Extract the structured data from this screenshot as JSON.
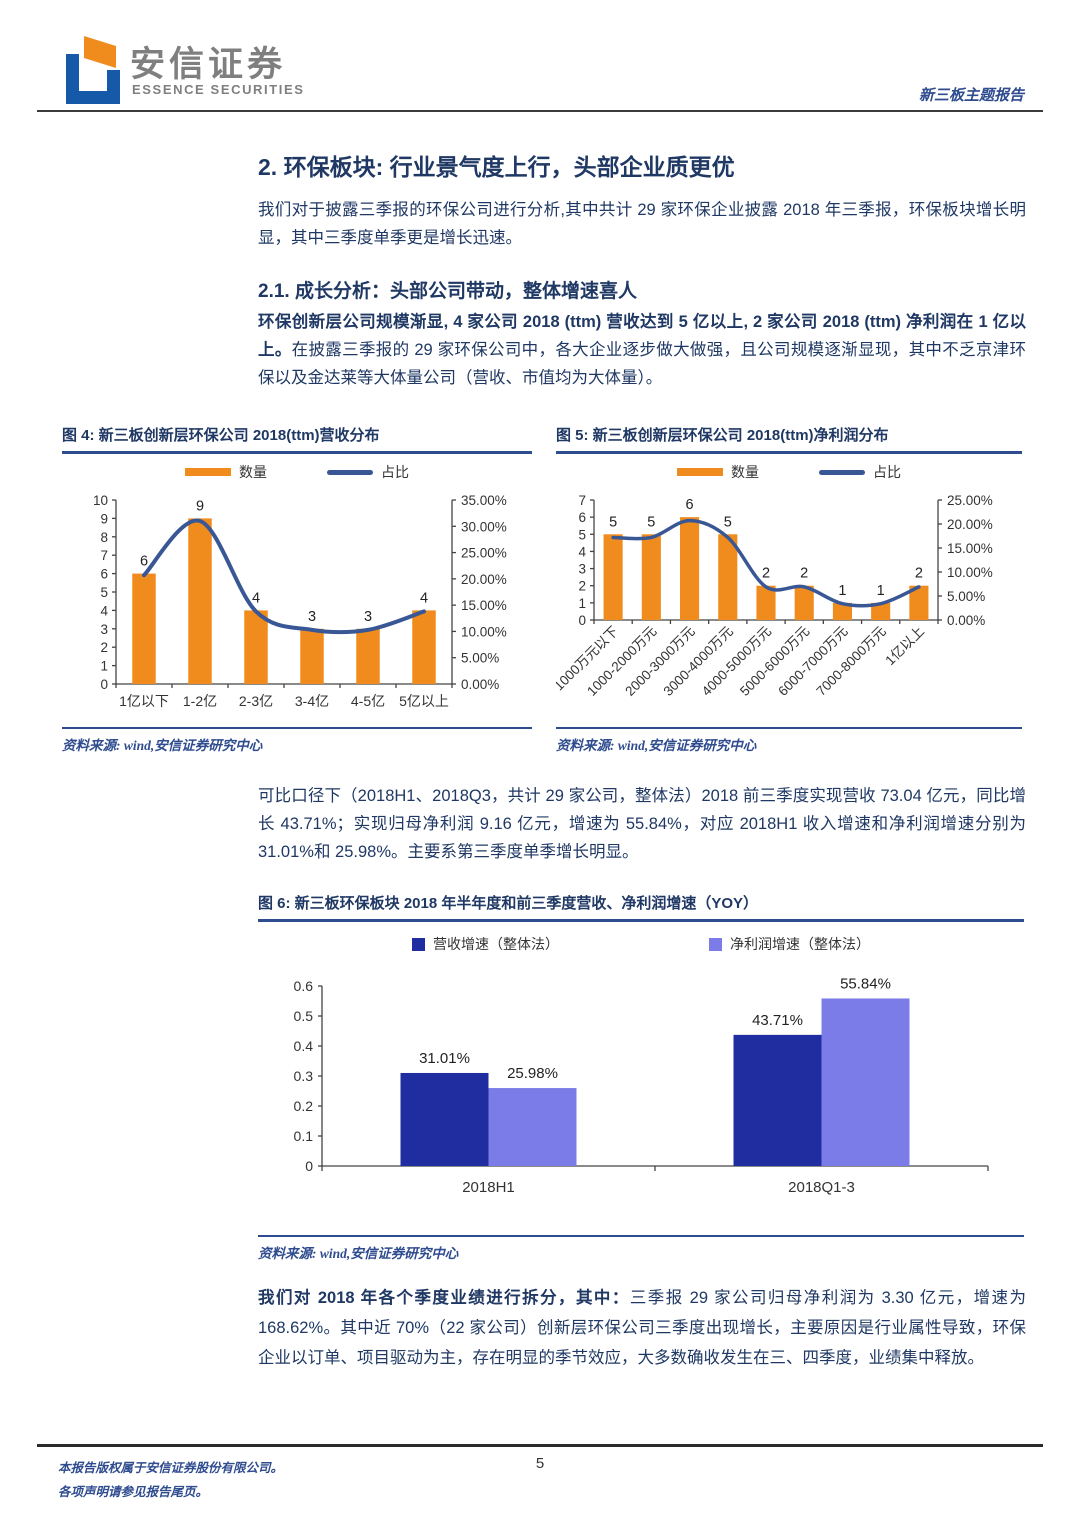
{
  "header": {
    "brand_cn": "安信证券",
    "brand_en": "ESSENCE SECURITIES",
    "report_type": "新三板主题报告"
  },
  "section": {
    "title": "2. 环保板块: 行业景气度上行，头部企业质更优",
    "intro": "我们对于披露三季报的环保公司进行分析,其中共计 29 家环保企业披露 2018 年三季报，环保板块增长明显，其中三季度单季更是增长迅速。"
  },
  "subsection": {
    "title": "2.1. 成长分析：头部公司带动，整体增速喜人",
    "lead_bold": "环保创新层公司规模渐显, 4 家公司 2018 (ttm) 营收达到 5 亿以上, 2 家公司 2018 (ttm) 净利润在 1 亿以上。",
    "lead_rest": "在披露三季报的 29 家环保公司中，各大企业逐步做大做强，且公司规模逐渐显现，其中不乏京津环保以及金达莱等大体量公司（营收、市值均为大体量）。"
  },
  "mid_paragraph": "可比口径下（2018H1、2018Q3，共计 29 家公司，整体法）2018 前三季度实现营收 73.04 亿元，同比增长 43.71%；实现归母净利润 9.16 亿元，增速为 55.84%，对应 2018H1 收入增速和净利润增速分别为 31.01%和 25.98%。主要系第三季度单季增长明显。",
  "closing": {
    "bold": "我们对 2018 年各个季度业绩进行拆分，其中：",
    "rest": "三季报 29 家公司归母净利润为 3.30 亿元，增速为 168.62%。其中近 70%（22 家公司）创新层环保公司三季度出现增长，主要原因是行业属性导致，环保企业以订单、项目驱动为主，存在明显的季节效应，大多数确收发生在三、四季度，业绩集中释放。"
  },
  "source_note": "资料来源: wind,安信证券研究中心",
  "footer": {
    "line1": "本报告版权属于安信证券股份有限公司。",
    "line2": "各项声明请参见报告尾页。",
    "page": "5"
  },
  "colors": {
    "heading_blue": "#1F3864",
    "rule_blue": "#2E4D8E",
    "bar_orange": "#F08C1E",
    "line_blue": "#3A5795",
    "navy_bar": "#1F2DA0",
    "periwinkle_bar": "#7B7CE8",
    "axis_text": "#333333",
    "brand_gray": "#7F7F7F"
  },
  "chart_data": [
    {
      "type": "bar",
      "combo": "bar+line-dual-axis",
      "title": "图 4: 新三板创新层环保公司 2018(ttm)营收分布",
      "categories": [
        "1亿以下",
        "1-2亿",
        "2-3亿",
        "3-4亿",
        "4-5亿",
        "5亿以上"
      ],
      "series": [
        {
          "name": "数量",
          "kind": "bar",
          "color": "#F08C1E",
          "values": [
            6,
            9,
            4,
            3,
            3,
            4
          ]
        },
        {
          "name": "占比",
          "kind": "line",
          "color": "#3A5795",
          "axis": "right",
          "values": [
            20.7,
            31.0,
            13.8,
            10.3,
            10.3,
            13.8
          ]
        }
      ],
      "left_axis": {
        "min": 0,
        "max": 10,
        "step": 1
      },
      "right_axis": {
        "min": 0,
        "max": 35,
        "step": 5,
        "format": "percent2"
      },
      "grid": false,
      "legend_position": "top",
      "source": "资料来源: wind,安信证券研究中心"
    },
    {
      "type": "bar",
      "combo": "bar+line-dual-axis",
      "title": "图 5: 新三板创新层环保公司 2018(ttm)净利润分布",
      "categories": [
        "1000万元以下",
        "1000-2000万元",
        "2000-3000万元",
        "3000-4000万元",
        "4000-5000万元",
        "5000-6000万元",
        "6000-7000万元",
        "7000-8000万元",
        "1亿以上"
      ],
      "series": [
        {
          "name": "数量",
          "kind": "bar",
          "color": "#F08C1E",
          "values": [
            5,
            5,
            6,
            5,
            2,
            2,
            1,
            1,
            2
          ]
        },
        {
          "name": "占比",
          "kind": "line",
          "color": "#3A5795",
          "axis": "right",
          "values": [
            17.2,
            17.2,
            20.7,
            17.2,
            6.9,
            6.9,
            3.4,
            3.4,
            6.9
          ]
        }
      ],
      "left_axis": {
        "min": 0,
        "max": 7,
        "step": 1
      },
      "right_axis": {
        "min": 0,
        "max": 25,
        "step": 5,
        "format": "percent2"
      },
      "grid": false,
      "legend_position": "top",
      "x_labels_rotated_45": true,
      "source": "资料来源: wind,安信证券研究中心"
    },
    {
      "type": "bar",
      "combo": "grouped-bar",
      "title": "图 6: 新三板环保板块 2018 年半年度和前三季度营收、净利润增速（YOY）",
      "categories": [
        "2018H1",
        "2018Q1-3"
      ],
      "series": [
        {
          "name": "营收增速（整体法）",
          "color": "#1F2DA0",
          "values": [
            0.3101,
            0.4371
          ],
          "labels": [
            "31.01%",
            "43.71%"
          ]
        },
        {
          "name": "净利润增速（整体法）",
          "color": "#7B7CE8",
          "values": [
            0.2598,
            0.5584
          ],
          "labels": [
            "25.98%",
            "55.84%"
          ]
        }
      ],
      "left_axis": {
        "min": 0,
        "max": 0.6,
        "step": 0.1
      },
      "grid": false,
      "legend_position": "top",
      "source": "资料来源: wind,安信证券研究中心"
    }
  ]
}
